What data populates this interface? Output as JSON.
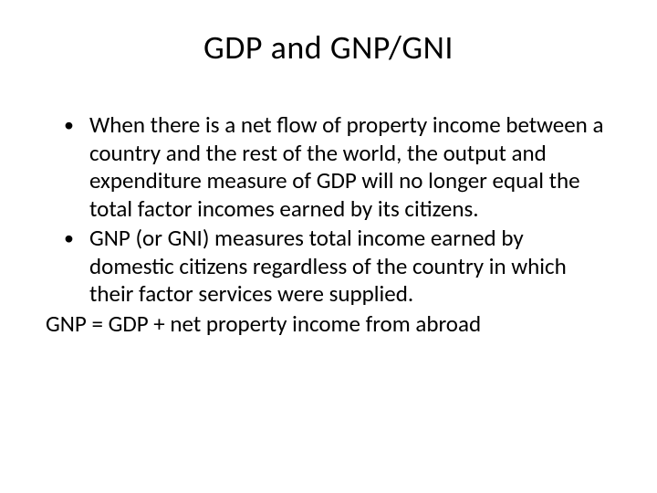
{
  "slide": {
    "title": "GDP and GNP/GNI",
    "bullets": [
      "When there is a net flow of property income between a country and the rest of the world, the output and expenditure measure of GDP will no longer equal the total factor incomes earned by its citizens.",
      "GNP (or GNI) measures total income earned by domestic citizens regardless of the country in which their factor services were supplied."
    ],
    "equation": "GNP = GDP + net property income from abroad",
    "style": {
      "background_color": "#ffffff",
      "text_color": "#000000",
      "title_fontsize": 36,
      "body_fontsize": 25,
      "font_family": "Calibri",
      "bullet_char": "•"
    }
  }
}
